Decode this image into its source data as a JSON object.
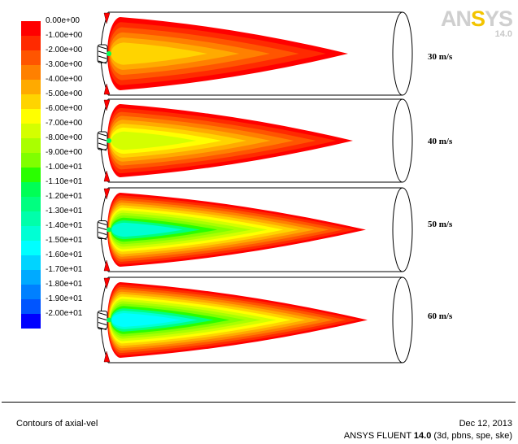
{
  "logo": {
    "brand_prefix": "AN",
    "brand_accent": "S",
    "brand_suffix": "YS",
    "version": "14.0"
  },
  "legend": {
    "labels": [
      "0.00e+00",
      "-1.00e+00",
      "-2.00e+00",
      "-3.00e+00",
      "-4.00e+00",
      "-5.00e+00",
      "-6.00e+00",
      "-7.00e+00",
      "-8.00e+00",
      "-9.00e+00",
      "-1.00e+01",
      "-1.10e+01",
      "-1.20e+01",
      "-1.30e+01",
      "-1.40e+01",
      "-1.50e+01",
      "-1.60e+01",
      "-1.70e+01",
      "-1.80e+01",
      "-1.90e+01",
      "-2.00e+01"
    ],
    "colors": [
      "#ff0000",
      "#ff2a00",
      "#ff5500",
      "#ff8000",
      "#ffaa00",
      "#ffd400",
      "#ffff00",
      "#d4ff00",
      "#aaff00",
      "#80ff00",
      "#2aff00",
      "#00ff55",
      "#00ff80",
      "#00ffaa",
      "#00ffd4",
      "#00ffff",
      "#00d4ff",
      "#00aaff",
      "#0080ff",
      "#0055ff",
      "#0000ff"
    ]
  },
  "panels": [
    {
      "label": "30 m/s"
    },
    {
      "label": "40 m/s"
    },
    {
      "label": "50 m/s"
    },
    {
      "label": "60 m/s"
    }
  ],
  "footer": {
    "left": "Contours of axial-vel",
    "date": "Dec 12, 2013",
    "product_prefix": "ANSYS FLUENT ",
    "product_version": "14.0",
    "product_suffix": " (3d, pbns, spe, ske)"
  }
}
